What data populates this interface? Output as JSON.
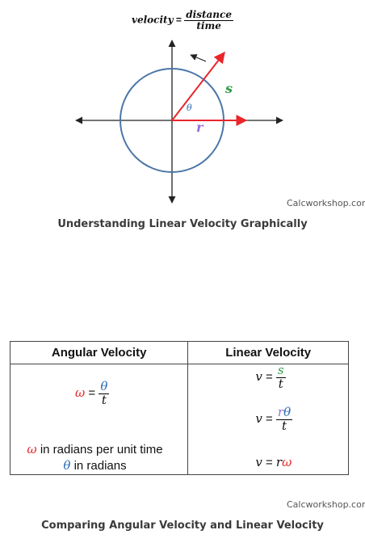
{
  "diagram": {
    "formula": {
      "lhs": "velocity",
      "eq": "=",
      "num": "distance",
      "den": "time"
    },
    "labels": {
      "theta": "θ",
      "s": "s",
      "r": "r"
    },
    "colors": {
      "circle": "#4a76a8",
      "radius": "#e8262b",
      "s": "#2e9b48",
      "r": "#9b6bd6",
      "theta": "#2b6ab3",
      "axis": "#222222"
    }
  },
  "watermark1": "Calcworkshop.com",
  "caption1": "Understanding Linear Velocity Graphically",
  "table": {
    "headers": [
      "Angular Velocity",
      "Linear Velocity"
    ],
    "angular": {
      "formula": {
        "lhs": "ω",
        "eq": "=",
        "num": "θ",
        "den": "t"
      },
      "note1_symbol": "ω",
      "note1_text": " in radians per unit time",
      "note2_symbol": "θ",
      "note2_text": " in radians"
    },
    "linear": {
      "f1": {
        "lhs": "v",
        "eq": "=",
        "num": "s",
        "den": "t"
      },
      "f2": {
        "lhs": "v",
        "eq": "=",
        "num_r": "r",
        "num_theta": "θ",
        "den": "t"
      },
      "f3": {
        "lhs": "v",
        "eq": " = ",
        "r": "r",
        "omega": "ω"
      }
    }
  },
  "watermark2": "Calcworkshop.com",
  "caption2": "Comparing Angular Velocity and Linear Velocity"
}
